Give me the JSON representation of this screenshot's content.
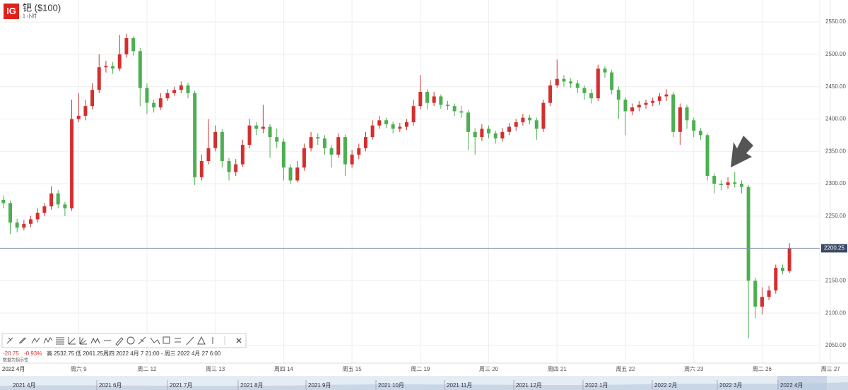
{
  "logo": "IG",
  "chart_data": {
    "type": "candlestick",
    "title": "钯 ($100)",
    "subtitle": "1 小时",
    "up_color": "#d32f2f",
    "down_color": "#4caf50",
    "open": [
      2275,
      2270,
      2240,
      2232,
      2238,
      2245,
      2255,
      2265,
      2285,
      2268,
      2262,
      2400,
      2405,
      2420,
      2445,
      2480,
      2482,
      2478,
      2500,
      2525,
      2505,
      2448,
      2425,
      2418,
      2432,
      2440,
      2445,
      2452,
      2440,
      2310,
      2335,
      2355,
      2380,
      2335,
      2318,
      2330,
      2360,
      2390,
      2385,
      2388,
      2372,
      2365,
      2325,
      2305,
      2325,
      2355,
      2372,
      2370,
      2355,
      2345,
      2372,
      2330,
      2345,
      2355,
      2372,
      2390,
      2398,
      2392,
      2385,
      2388,
      2395,
      2420,
      2442,
      2425,
      2435,
      2422,
      2420,
      2412,
      2410,
      2380,
      2372,
      2385,
      2378,
      2370,
      2380,
      2388,
      2395,
      2402,
      2398,
      2385,
      2425,
      2452,
      2462,
      2458,
      2455,
      2448,
      2440,
      2432,
      2478,
      2472,
      2445,
      2430,
      2412,
      2418,
      2422,
      2425,
      2428,
      2435,
      2438,
      2380,
      2418,
      2398,
      2382,
      2375,
      2312,
      2300,
      2298,
      2302,
      2300,
      2295,
      2150,
      2110,
      2125,
      2135,
      2170,
      2165
    ],
    "high": [
      2282,
      2274,
      2246,
      2244,
      2250,
      2262,
      2270,
      2296,
      2290,
      2272,
      2430,
      2440,
      2430,
      2455,
      2500,
      2490,
      2488,
      2530,
      2532,
      2528,
      2510,
      2455,
      2430,
      2440,
      2446,
      2450,
      2458,
      2456,
      2444,
      2345,
      2400,
      2390,
      2384,
      2340,
      2338,
      2368,
      2400,
      2395,
      2422,
      2392,
      2385,
      2370,
      2330,
      2335,
      2362,
      2380,
      2378,
      2375,
      2360,
      2378,
      2376,
      2352,
      2362,
      2380,
      2398,
      2405,
      2402,
      2396,
      2394,
      2400,
      2430,
      2468,
      2446,
      2442,
      2438,
      2428,
      2424,
      2420,
      2414,
      2386,
      2392,
      2390,
      2382,
      2386,
      2394,
      2400,
      2408,
      2406,
      2402,
      2430,
      2460,
      2492,
      2468,
      2463,
      2460,
      2452,
      2446,
      2484,
      2482,
      2476,
      2450,
      2434,
      2424,
      2428,
      2430,
      2433,
      2440,
      2446,
      2442,
      2424,
      2422,
      2402,
      2386,
      2378,
      2316,
      2306,
      2310,
      2318,
      2305,
      2298,
      2155,
      2140,
      2142,
      2175,
      2175,
      2208
    ],
    "low": [
      2262,
      2222,
      2225,
      2228,
      2233,
      2240,
      2250,
      2260,
      2262,
      2250,
      2258,
      2395,
      2398,
      2415,
      2440,
      2472,
      2470,
      2474,
      2495,
      2498,
      2420,
      2408,
      2410,
      2414,
      2428,
      2436,
      2440,
      2432,
      2298,
      2305,
      2330,
      2350,
      2325,
      2305,
      2312,
      2326,
      2355,
      2375,
      2378,
      2340,
      2355,
      2305,
      2300,
      2302,
      2320,
      2350,
      2360,
      2345,
      2325,
      2340,
      2312,
      2325,
      2338,
      2350,
      2368,
      2385,
      2386,
      2378,
      2380,
      2383,
      2390,
      2415,
      2415,
      2420,
      2416,
      2414,
      2405,
      2402,
      2352,
      2345,
      2366,
      2370,
      2362,
      2365,
      2375,
      2382,
      2390,
      2392,
      2368,
      2380,
      2420,
      2448,
      2450,
      2448,
      2440,
      2430,
      2424,
      2428,
      2464,
      2438,
      2400,
      2375,
      2406,
      2412,
      2416,
      2420,
      2422,
      2428,
      2372,
      2360,
      2385,
      2372,
      2368,
      2305,
      2285,
      2290,
      2292,
      2294,
      2285,
      2061,
      2092,
      2098,
      2120,
      2130,
      2160,
      2162
    ],
    "close": [
      2270,
      2240,
      2232,
      2238,
      2245,
      2255,
      2265,
      2285,
      2268,
      2262,
      2400,
      2405,
      2420,
      2445,
      2480,
      2482,
      2478,
      2500,
      2525,
      2505,
      2448,
      2425,
      2418,
      2432,
      2440,
      2445,
      2452,
      2440,
      2310,
      2335,
      2355,
      2380,
      2335,
      2318,
      2330,
      2360,
      2390,
      2385,
      2388,
      2372,
      2365,
      2325,
      2305,
      2325,
      2355,
      2372,
      2370,
      2355,
      2345,
      2372,
      2330,
      2345,
      2355,
      2372,
      2390,
      2398,
      2392,
      2385,
      2388,
      2395,
      2420,
      2442,
      2425,
      2435,
      2422,
      2420,
      2412,
      2410,
      2380,
      2372,
      2385,
      2378,
      2370,
      2380,
      2388,
      2395,
      2402,
      2398,
      2385,
      2425,
      2452,
      2462,
      2458,
      2455,
      2448,
      2440,
      2432,
      2478,
      2472,
      2445,
      2430,
      2412,
      2418,
      2422,
      2425,
      2428,
      2435,
      2438,
      2380,
      2418,
      2398,
      2382,
      2375,
      2312,
      2300,
      2298,
      2302,
      2300,
      2295,
      2150,
      2110,
      2125,
      2135,
      2170,
      2165,
      2200.25
    ],
    "last_price": 2200.25,
    "ylim": [
      2027,
      2584
    ],
    "yticks": [
      {
        "value": 2050,
        "label": "2050.00"
      },
      {
        "value": 2100,
        "label": "2100.00"
      },
      {
        "value": 2150,
        "label": "2150.00"
      },
      {
        "value": 2200,
        "label": "2200.00"
      },
      {
        "value": 2250,
        "label": "2250.00"
      },
      {
        "value": 2300,
        "label": "2300.00"
      },
      {
        "value": 2350,
        "label": "2350.00"
      },
      {
        "value": 2400,
        "label": "2400.00"
      },
      {
        "value": 2450,
        "label": "2450.00"
      },
      {
        "value": 2500,
        "label": "2500.00"
      },
      {
        "value": 2550,
        "label": "2550.00"
      }
    ],
    "xlim": [
      0,
      122
    ],
    "xticks": [
      {
        "value": 0.3,
        "label": "2022 4月"
      },
      {
        "value": 11.5,
        "label": "周六 9"
      },
      {
        "value": 21.5,
        "label": "周二 12"
      },
      {
        "value": 31.5,
        "label": "周三 13"
      },
      {
        "value": 41.5,
        "label": "周四 14"
      },
      {
        "value": 51.5,
        "label": "周五 15"
      },
      {
        "value": 61.5,
        "label": "周二 19"
      },
      {
        "value": 71.5,
        "label": "周三 20"
      },
      {
        "value": 81.5,
        "label": "周四 21"
      },
      {
        "value": 91.5,
        "label": "周五 22"
      },
      {
        "value": 101.5,
        "label": "周六 23"
      },
      {
        "value": 111.5,
        "label": "周二 26"
      },
      {
        "value": 121.5,
        "label": "周三 27"
      }
    ],
    "grid": true
  },
  "info": {
    "change": "-20.75",
    "change_pct": "-0.93%",
    "high": "高 2532.75",
    "low": "低 2061.25",
    "range": "周四 2022 4月 7 21:00 - 周三 2022 4月 27 6:00",
    "note": "数据为指示性"
  },
  "navigator": {
    "labels": [
      "2021 4月",
      "2021 6月",
      "2021 7月",
      "2021 8月",
      "2021 9月",
      "2021 10月",
      "2021 11月",
      "2021 12月",
      "2022 1月",
      "2022 2月",
      "2022 3月",
      "2022 4月"
    ]
  }
}
